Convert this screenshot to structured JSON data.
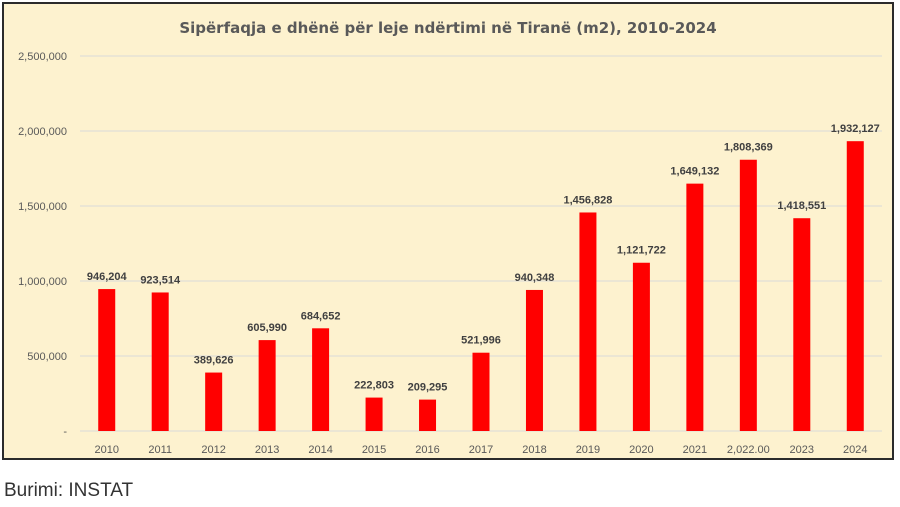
{
  "source_text": "Burimi: INSTAT",
  "colors": {
    "bar": "#ff0000",
    "background": "#fdf2cf",
    "grid": "#d9d9d9"
  },
  "chart_data": {
    "type": "bar",
    "title": "Sipërfaqja e dhënë për leje ndërtimi në Tiranë (m2), 2010-2024",
    "xlabel": "",
    "ylabel": "",
    "ylim": [
      0,
      2500000
    ],
    "yticks": [
      0,
      500000,
      1000000,
      1500000,
      2000000,
      2500000
    ],
    "ytick_labels": [
      "-",
      "500,000",
      "1,000,000",
      "1,500,000",
      "2,000,000",
      "2,500,000"
    ],
    "categories": [
      "2010",
      "2011",
      "2012",
      "2013",
      "2014",
      "2015",
      "2016",
      "2017",
      "2018",
      "2019",
      "2020",
      "2021",
      "2,022.00",
      "2023",
      "2024"
    ],
    "values": [
      946204,
      923514,
      389626,
      605990,
      684652,
      222803,
      209295,
      521996,
      940348,
      1456828,
      1121722,
      1649132,
      1808369,
      1418551,
      1932127
    ],
    "value_labels": [
      "946,204",
      "923,514",
      "389,626",
      "605,990",
      "684,652",
      "222,803",
      "209,295",
      "521,996",
      "940,348",
      "1,456,828",
      "1,121,722",
      "1,649,132",
      "1,808,369",
      "1,418,551",
      "1,932,127"
    ],
    "grid": true,
    "legend": "none"
  }
}
